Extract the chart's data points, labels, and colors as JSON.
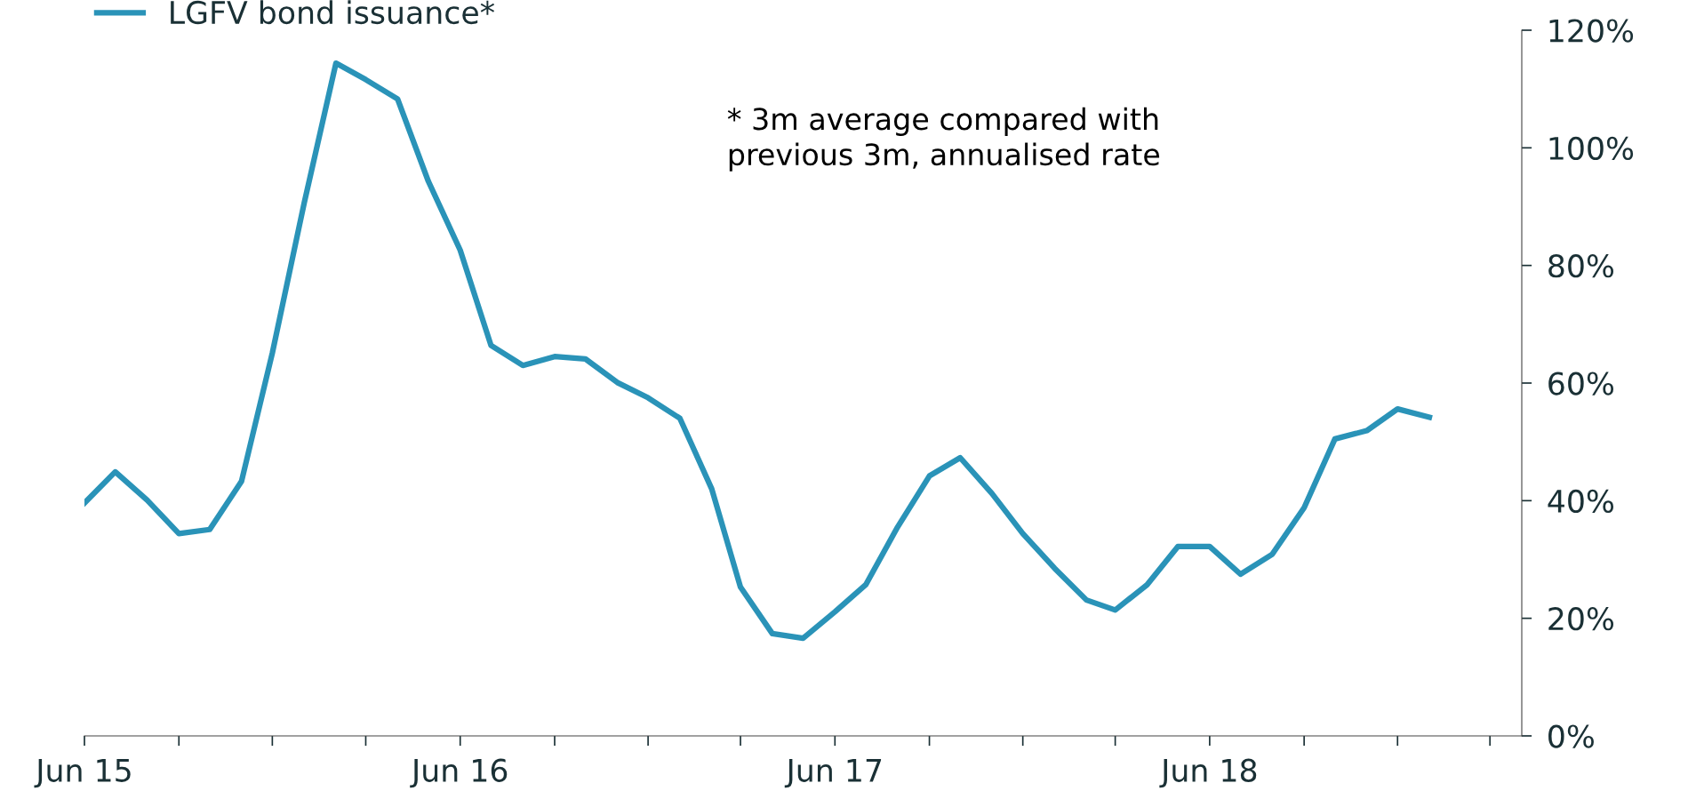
{
  "chart_data": {
    "type": "line",
    "x": [
      "2015-06",
      "2015-07",
      "2015-08",
      "2015-09",
      "2015-10",
      "2015-11",
      "2015-12",
      "2016-01",
      "2016-02",
      "2016-03",
      "2016-04",
      "2016-05",
      "2016-06",
      "2016-07",
      "2016-08",
      "2016-09",
      "2016-10",
      "2016-11",
      "2016-12",
      "2017-01",
      "2017-02",
      "2017-03",
      "2017-04",
      "2017-05",
      "2017-06",
      "2017-07",
      "2017-08",
      "2017-09",
      "2017-10",
      "2017-11",
      "2017-12",
      "2018-01",
      "2018-02",
      "2018-03",
      "2018-04",
      "2018-05",
      "2018-06",
      "2018-07",
      "2018-08",
      "2018-09",
      "2018-10",
      "2018-11",
      "2018-12",
      "2019-01"
    ],
    "series": [
      {
        "name": "LGFV bond issuance*",
        "color": "#2a93b8",
        "values": [
          39.6,
          44.9,
          40.1,
          34.4,
          35.1,
          43.3,
          65.1,
          90.6,
          114.4,
          111.6,
          108.3,
          94.3,
          82.6,
          66.4,
          63.0,
          64.5,
          64.1,
          60.1,
          57.5,
          54.0,
          42.0,
          25.3,
          17.4,
          16.6,
          21.1,
          25.7,
          35.5,
          44.2,
          47.3,
          41.2,
          34.4,
          28.5,
          23.1,
          21.4,
          25.7,
          32.2,
          32.2,
          27.5,
          30.9,
          38.8,
          50.5,
          51.9,
          55.6,
          54.2
        ]
      }
    ],
    "annotations": [
      "* 3m average compared with\nprevious 3m, annualised rate"
    ],
    "xlim": [
      "2015-06",
      "2019-04"
    ],
    "xticks": [
      {
        "value": "2015-06",
        "label": "Jun 15"
      },
      {
        "value": "2015-09",
        "label": null
      },
      {
        "value": "2015-12",
        "label": null
      },
      {
        "value": "2016-03",
        "label": null
      },
      {
        "value": "2016-06",
        "label": "Jun 16"
      },
      {
        "value": "2016-09",
        "label": null
      },
      {
        "value": "2016-12",
        "label": null
      },
      {
        "value": "2017-03",
        "label": null
      },
      {
        "value": "2017-06",
        "label": "Jun 17"
      },
      {
        "value": "2017-09",
        "label": null
      },
      {
        "value": "2017-12",
        "label": null
      },
      {
        "value": "2018-03",
        "label": null
      },
      {
        "value": "2018-06",
        "label": "Jun 18"
      },
      {
        "value": "2018-09",
        "label": null
      },
      {
        "value": "2018-12",
        "label": null
      },
      {
        "value": "2019-03",
        "label": null
      }
    ],
    "ylim": [
      0,
      120
    ],
    "yticks": [
      {
        "value": 0,
        "label": "0%"
      },
      {
        "value": 20,
        "label": "20%"
      },
      {
        "value": 40,
        "label": "40%"
      },
      {
        "value": 60,
        "label": "60%"
      },
      {
        "value": 80,
        "label": "80%"
      },
      {
        "value": 100,
        "label": "100%"
      },
      {
        "value": 120,
        "label": "120%"
      }
    ],
    "grid": false,
    "legend": "top left",
    "marker": "none",
    "line_style": "solid"
  }
}
